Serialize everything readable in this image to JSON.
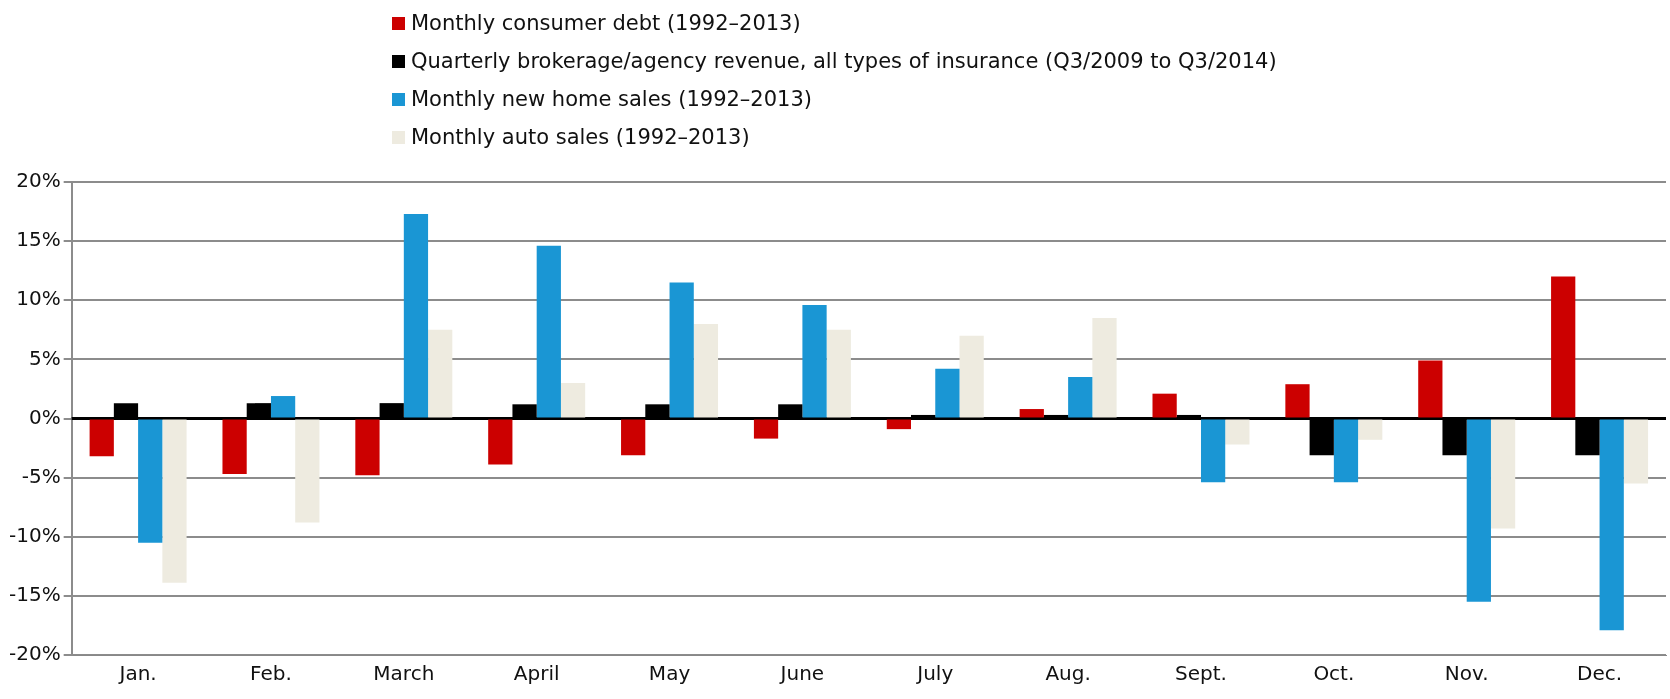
{
  "chart_data": {
    "type": "bar",
    "categories": [
      "Jan.",
      "Feb.",
      "March",
      "April",
      "May",
      "June",
      "July",
      "Aug.",
      "Sept.",
      "Oct.",
      "Nov.",
      "Dec."
    ],
    "series": [
      {
        "name": "Monthly consumer debt (1992–2013)",
        "color": "#cc0000",
        "values": [
          -3.2,
          -4.7,
          -4.8,
          -3.9,
          -3.1,
          -1.7,
          -0.9,
          0.8,
          2.1,
          2.9,
          4.9,
          12.0
        ]
      },
      {
        "name": "Quarterly brokerage/agency revenue, all types of insurance (Q3/2009 to Q3/2014)",
        "color": "#000000",
        "values": [
          1.3,
          1.3,
          1.3,
          1.2,
          1.2,
          1.2,
          0.3,
          0.3,
          0.3,
          -3.1,
          -3.1,
          -3.1
        ]
      },
      {
        "name": "Monthly new home sales (1992–2013)",
        "color": "#1a96d4",
        "values": [
          -10.5,
          1.9,
          17.3,
          14.6,
          11.5,
          9.6,
          4.2,
          3.5,
          -5.4,
          -5.4,
          -15.5,
          -17.9
        ]
      },
      {
        "name": "Monthly auto  sales (1992–2013)",
        "color": "#eeebe0",
        "values": [
          -13.9,
          -8.8,
          7.5,
          3.0,
          8.0,
          7.5,
          7.0,
          8.5,
          -2.2,
          -1.8,
          -9.3,
          -5.5
        ]
      }
    ],
    "ylim": [
      -20,
      20
    ],
    "yticks": [
      {
        "value": -20,
        "label": "-20%"
      },
      {
        "value": -15,
        "label": "-15%"
      },
      {
        "value": -10,
        "label": "-10%"
      },
      {
        "value": -5,
        "label": "-5%"
      },
      {
        "value": 0,
        "label": "0%"
      },
      {
        "value": 5,
        "label": "5%"
      },
      {
        "value": 10,
        "label": "10%"
      },
      {
        "value": 15,
        "label": "15%"
      },
      {
        "value": 20,
        "label": "20%"
      }
    ],
    "ref_lines": [
      {
        "axis": "y",
        "value": 0,
        "color": "#000000"
      }
    ],
    "grid": "y",
    "legend": "top"
  }
}
